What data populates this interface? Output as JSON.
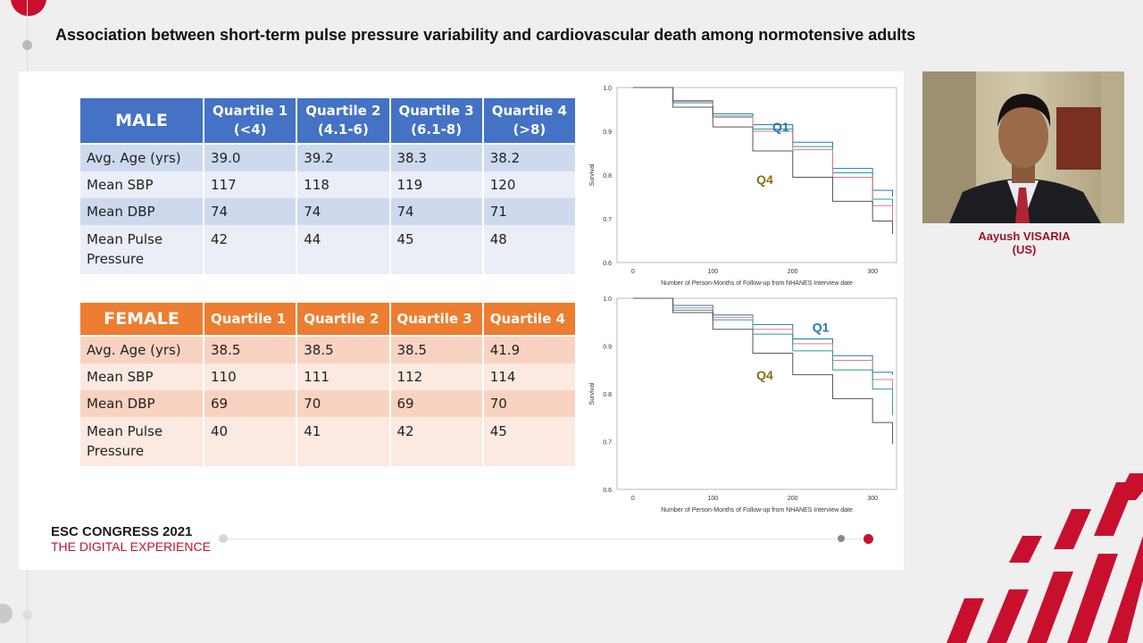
{
  "header": {
    "title": "Association between short-term pulse pressure variability and cardiovascular death among normotensive adults"
  },
  "male_table": {
    "headers": [
      {
        "l1": "MALE",
        "l2": ""
      },
      {
        "l1": "Quartile 1",
        "l2": "(<4)"
      },
      {
        "l1": "Quartile 2",
        "l2": "(4.1-6)"
      },
      {
        "l1": "Quartile 3",
        "l2": "(6.1-8)"
      },
      {
        "l1": "Quartile 4",
        "l2": "(>8)"
      }
    ],
    "rows": [
      [
        "Avg. Age (yrs)",
        "39.0",
        "39.2",
        "38.3",
        "38.2"
      ],
      [
        "Mean SBP",
        "117",
        "118",
        "119",
        "120"
      ],
      [
        "Mean DBP",
        "74",
        "74",
        "74",
        "71"
      ],
      [
        "Mean Pulse Pressure",
        "42",
        "44",
        "45",
        "48"
      ]
    ]
  },
  "female_table": {
    "headers": [
      "FEMALE",
      "Quartile 1",
      "Quartile 2",
      "Quartile 3",
      "Quartile 4"
    ],
    "rows": [
      [
        "Avg. Age (yrs)",
        "38.5",
        "38.5",
        "38.5",
        "41.9"
      ],
      [
        "Mean SBP",
        "110",
        "111",
        "112",
        "114"
      ],
      [
        "Mean DBP",
        "69",
        "70",
        "69",
        "70"
      ],
      [
        "Mean Pulse Pressure",
        "40",
        "41",
        "42",
        "45"
      ]
    ]
  },
  "chart_data": [
    {
      "type": "line",
      "title": "",
      "xlabel": "Number of Person-Months of Follow-up from NHANES Interview date",
      "ylabel": "Survival",
      "xlim": [
        -20,
        330
      ],
      "ylim": [
        0.6,
        1.0
      ],
      "xticks": [
        0,
        100,
        200,
        300
      ],
      "yticks": [
        0.6,
        0.7,
        0.8,
        0.9,
        1.0
      ],
      "annotations": [
        {
          "text": "Q1",
          "x": 185,
          "y": 0.9,
          "color": "#1f77b4"
        },
        {
          "text": "Q4",
          "x": 165,
          "y": 0.78,
          "color": "#8b6c12"
        }
      ],
      "series": [
        {
          "color": "#1f77b4",
          "x": [
            0,
            50,
            100,
            150,
            200,
            250,
            300,
            325
          ],
          "y": [
            1.0,
            0.97,
            0.94,
            0.915,
            0.875,
            0.815,
            0.765,
            0.75
          ]
        },
        {
          "color": "#2a9d8f",
          "x": [
            0,
            50,
            100,
            150,
            200,
            250,
            300,
            325
          ],
          "y": [
            1.0,
            0.965,
            0.935,
            0.905,
            0.865,
            0.805,
            0.745,
            0.705
          ]
        },
        {
          "color": "#e07a8a",
          "x": [
            0,
            50,
            100,
            150,
            200,
            250,
            300,
            325
          ],
          "y": [
            1.0,
            0.968,
            0.932,
            0.9,
            0.858,
            0.795,
            0.73,
            0.69
          ]
        },
        {
          "color": "#555555",
          "x": [
            0,
            50,
            100,
            150,
            200,
            250,
            300,
            325
          ],
          "y": [
            1.0,
            0.955,
            0.91,
            0.855,
            0.795,
            0.74,
            0.695,
            0.665
          ]
        }
      ]
    },
    {
      "type": "line",
      "title": "",
      "xlabel": "Number of Person-Months of Follow-up from NHANES Interview date",
      "ylabel": "Survival",
      "xlim": [
        -20,
        330
      ],
      "ylim": [
        0.6,
        1.0
      ],
      "xticks": [
        0,
        100,
        200,
        300
      ],
      "yticks": [
        0.6,
        0.7,
        0.8,
        0.9,
        1.0
      ],
      "annotations": [
        {
          "text": "Q1",
          "x": 235,
          "y": 0.93,
          "color": "#1f77b4"
        },
        {
          "text": "Q4",
          "x": 165,
          "y": 0.83,
          "color": "#8b6c12"
        }
      ],
      "series": [
        {
          "color": "#1f77b4",
          "x": [
            0,
            50,
            100,
            150,
            200,
            250,
            300,
            325
          ],
          "y": [
            1.0,
            0.985,
            0.965,
            0.945,
            0.915,
            0.88,
            0.845,
            0.84
          ]
        },
        {
          "color": "#e07a8a",
          "x": [
            0,
            50,
            100,
            150,
            200,
            250,
            300,
            325
          ],
          "y": [
            1.0,
            0.98,
            0.96,
            0.935,
            0.905,
            0.87,
            0.83,
            0.81
          ]
        },
        {
          "color": "#2a9d8f",
          "x": [
            0,
            50,
            100,
            150,
            200,
            250,
            300,
            325
          ],
          "y": [
            1.0,
            0.975,
            0.955,
            0.925,
            0.89,
            0.85,
            0.81,
            0.755
          ]
        },
        {
          "color": "#555555",
          "x": [
            0,
            50,
            100,
            150,
            200,
            250,
            300,
            325
          ],
          "y": [
            1.0,
            0.97,
            0.935,
            0.885,
            0.84,
            0.79,
            0.74,
            0.695
          ]
        }
      ]
    }
  ],
  "branding": {
    "line1": "ESC CONGRESS 2021",
    "line2": "THE DIGITAL EXPERIENCE",
    "accent": "#c8102e"
  },
  "speaker": {
    "name": "Aayush VISARIA",
    "country": "(US)"
  }
}
